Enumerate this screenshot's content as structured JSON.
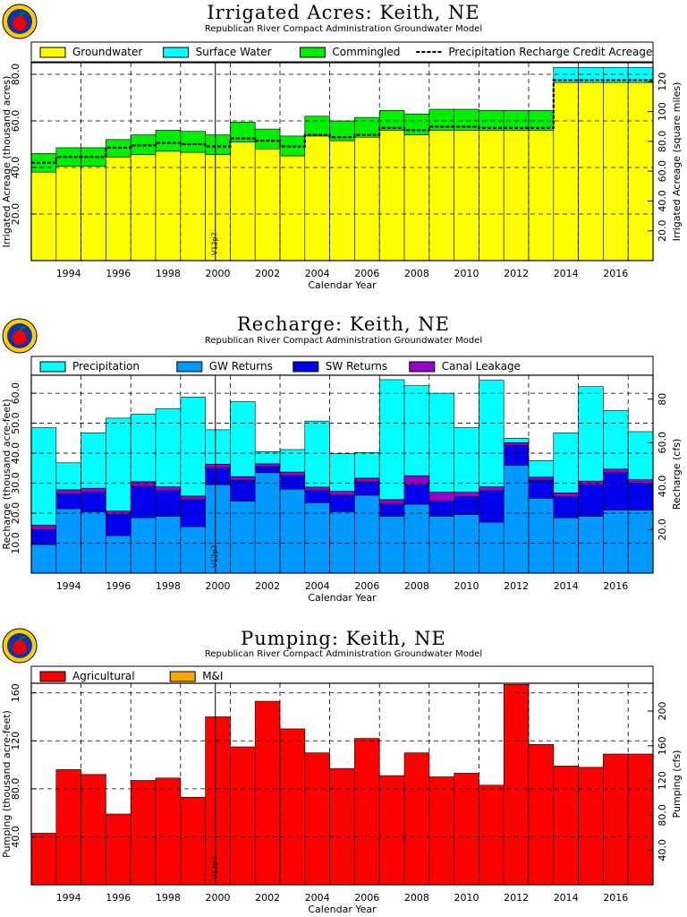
{
  "logo_icon": "apple-seal-icon",
  "chart_data": [
    {
      "type": "bar",
      "title": "Irrigated Acres: Keith, NE",
      "subtitle": "Republican River Compact Administration Groundwater Model",
      "xlabel": "Calendar Year",
      "ylabel": "Irrigated Acreage (thousand acres)",
      "ylabel_right": "Irrigated Acreage (square miles)",
      "ylim": [
        0,
        85
      ],
      "y_ticks": [
        "20.0",
        "40.0",
        "60.0",
        "80.0"
      ],
      "y_ticks_right": [
        "20.0",
        "40.0",
        "60.0",
        "80.0",
        "100",
        "120"
      ],
      "x": [
        1993,
        1994,
        1995,
        1996,
        1997,
        1998,
        1999,
        2000,
        2001,
        2002,
        2003,
        2004,
        2005,
        2006,
        2007,
        2008,
        2009,
        2010,
        2011,
        2012,
        2013,
        2014,
        2015,
        2016,
        2017
      ],
      "x_ticks": [
        "1994",
        "1996",
        "1998",
        "2000",
        "2002",
        "2004",
        "2006",
        "2008",
        "2010",
        "2012",
        "2014",
        "2016"
      ],
      "marker_label": "V12p7",
      "legend": [
        "Groundwater",
        "Surface Water",
        "Commingled",
        "Precipitation Recharge Credit Acreage"
      ],
      "series": [
        {
          "name": "Groundwater",
          "color": "#ffff00",
          "values": [
            38,
            40.5,
            40.5,
            44.5,
            45.5,
            47,
            46.5,
            45.5,
            51,
            48,
            45,
            53.5,
            51.5,
            53,
            56,
            54,
            56,
            56,
            56,
            56,
            56,
            76.5,
            76.5,
            76.5,
            76.5
          ]
        },
        {
          "name": "Surface Water",
          "color": "#00ffff",
          "values": [
            0,
            0,
            0,
            0,
            0,
            0,
            0,
            0,
            0,
            0,
            0,
            0,
            0,
            0,
            0,
            0,
            0,
            0,
            0,
            0,
            0,
            6.5,
            6.5,
            6.5,
            6.5
          ]
        },
        {
          "name": "Commingled",
          "color": "#00ee00",
          "values": [
            8,
            8,
            8,
            7.5,
            8.5,
            9,
            9,
            8.5,
            8.5,
            8.5,
            8.5,
            8.5,
            8.5,
            8.5,
            8.5,
            9,
            9,
            9,
            8.5,
            8.5,
            8.5,
            0,
            0,
            0,
            0
          ]
        }
      ],
      "line_series": {
        "name": "Precipitation Recharge Credit Acreage",
        "values": [
          42,
          44.5,
          44.5,
          48.5,
          49.5,
          50.5,
          50,
          49,
          52.5,
          51.5,
          49,
          54,
          53,
          54,
          57,
          56,
          57.5,
          57.5,
          57,
          57,
          57,
          77.5,
          77.5,
          77.5,
          77.5
        ]
      }
    },
    {
      "type": "bar",
      "title": "Recharge: Keith, NE",
      "subtitle": "Republican River Compact Administration Groundwater Model",
      "xlabel": "Calendar Year",
      "ylabel": "Recharge (thousand acre-feet)",
      "ylabel_right": "Recharge (cfs)",
      "ylim": [
        0,
        66
      ],
      "y_ticks": [
        "10.0",
        "20.0",
        "30.0",
        "40.0",
        "50.0",
        "60.0"
      ],
      "y_ticks_right": [
        "20.0",
        "40.0",
        "60.0",
        "80"
      ],
      "x": [
        1993,
        1994,
        1995,
        1996,
        1997,
        1998,
        1999,
        2000,
        2001,
        2002,
        2003,
        2004,
        2005,
        2006,
        2007,
        2008,
        2009,
        2010,
        2011,
        2012,
        2013,
        2014,
        2015,
        2016,
        2017
      ],
      "x_ticks": [
        "1994",
        "1996",
        "1998",
        "2000",
        "2002",
        "2004",
        "2006",
        "2008",
        "2010",
        "2012",
        "2014",
        "2016"
      ],
      "marker_label": "V12p7",
      "legend": [
        "Precipitation",
        "GW Returns",
        "SW Returns",
        "Canal Leakage"
      ],
      "series": [
        {
          "name": "GW Returns",
          "color": "#0099ff",
          "values": [
            9.5,
            21.5,
            20.5,
            12.5,
            18.5,
            19,
            15.5,
            29.5,
            24,
            33.5,
            28,
            23.5,
            20.5,
            26,
            19,
            23,
            19,
            19.5,
            17,
            36,
            25,
            18.5,
            19,
            21,
            21
          ]
        },
        {
          "name": "SW Returns",
          "color": "#0000ee",
          "values": [
            5,
            5,
            6.5,
            7,
            10.5,
            8.5,
            9,
            5.5,
            7,
            2,
            4.5,
            4,
            5.5,
            4.5,
            4,
            6.5,
            5,
            6,
            10.5,
            6.5,
            6,
            7,
            10.5,
            12.5,
            9
          ]
        },
        {
          "name": "Canal Leakage",
          "color": "#9900cc",
          "values": [
            1.5,
            1.3,
            1.3,
            1.2,
            1.5,
            1.3,
            1.2,
            1.3,
            1.2,
            1,
            1.2,
            1.2,
            1.3,
            1.2,
            1.5,
            3,
            3,
            1.5,
            1.3,
            1,
            1,
            1.3,
            1.2,
            1.2,
            1.2
          ]
        },
        {
          "name": "Precipitation",
          "color": "#00ffff",
          "values": [
            32.5,
            9,
            18.5,
            31,
            22.5,
            26,
            33,
            11.5,
            25,
            4,
            7.5,
            22,
            12.5,
            8.5,
            40,
            30,
            33,
            21.5,
            35.5,
            1.5,
            5.5,
            20,
            31.5,
            19.5,
            16
          ]
        }
      ]
    },
    {
      "type": "bar",
      "title": "Pumping: Keith, NE",
      "subtitle": "Republican River Compact Administration Groundwater Model",
      "xlabel": "Calendar Year",
      "ylabel": "Pumping (thousand acre-feet)",
      "ylabel_right": "Pumping (cfs)",
      "ylim": [
        0,
        168
      ],
      "y_ticks": [
        "40.0",
        "80.0",
        "120",
        "160"
      ],
      "y_ticks_right": [
        "40.0",
        "80.0",
        "120",
        "160",
        "200"
      ],
      "x": [
        1993,
        1994,
        1995,
        1996,
        1997,
        1998,
        1999,
        2000,
        2001,
        2002,
        2003,
        2004,
        2005,
        2006,
        2007,
        2008,
        2009,
        2010,
        2011,
        2012,
        2013,
        2014,
        2015,
        2016,
        2017
      ],
      "x_ticks": [
        "1994",
        "1996",
        "1998",
        "2000",
        "2002",
        "2004",
        "2006",
        "2008",
        "2010",
        "2012",
        "2014",
        "2016"
      ],
      "marker_label": "V12p7",
      "legend": [
        "Agricultural",
        "M&I"
      ],
      "series": [
        {
          "name": "Agricultural",
          "color": "#ff0000",
          "values": [
            43,
            96,
            92,
            59,
            87,
            89,
            73,
            140,
            115,
            153,
            130,
            110,
            97,
            122,
            91,
            110,
            90,
            93,
            83,
            167,
            117,
            99,
            98,
            109,
            109
          ]
        },
        {
          "name": "M&I",
          "color": "#ffa500",
          "values": [
            0,
            0,
            0,
            0,
            0,
            0,
            0,
            0,
            0,
            0,
            0,
            0,
            0,
            0,
            0,
            0,
            0,
            0,
            0,
            0,
            0,
            0,
            0,
            0,
            0
          ]
        }
      ]
    }
  ]
}
